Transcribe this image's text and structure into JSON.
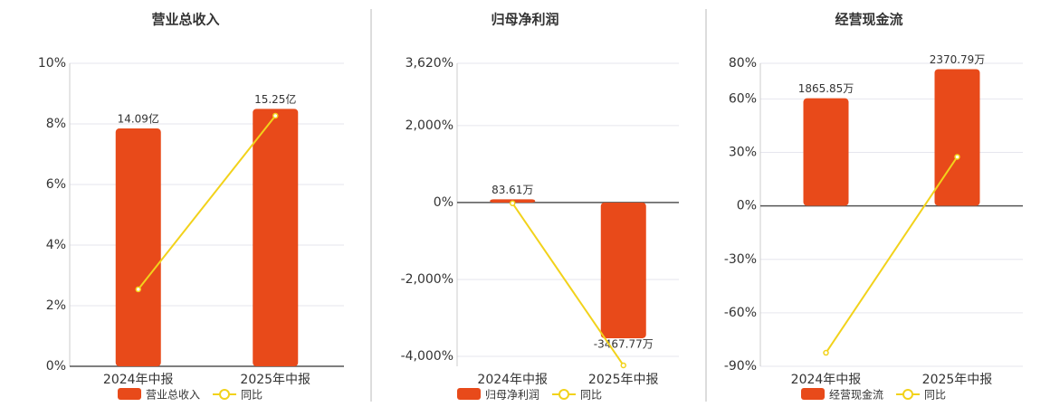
{
  "chart_data": [
    {
      "type": "bar-line",
      "title": "营业总收入",
      "categories": [
        "2024年中报",
        "2025年中报"
      ],
      "series": [
        {
          "name": "营业总收入",
          "color": "#e84a1a",
          "type": "bar",
          "axis": "y2",
          "values": [
            14.09,
            15.25
          ],
          "value_labels": [
            "14.09亿",
            "15.25亿"
          ]
        },
        {
          "name": "同比",
          "color": "#f2d21b",
          "type": "line",
          "axis": "y",
          "values": [
            2.54,
            8.27
          ]
        }
      ],
      "ylim": [
        0,
        10
      ],
      "yticks": [
        {
          "value": 0,
          "label": "0%"
        },
        {
          "value": 2,
          "label": "2%"
        },
        {
          "value": 4,
          "label": "4%"
        },
        {
          "value": 6,
          "label": "6%"
        },
        {
          "value": 8,
          "label": "8%"
        },
        {
          "value": 10,
          "label": "10%"
        }
      ],
      "y2lim": [
        0,
        17.95
      ],
      "grid": true
    },
    {
      "type": "bar-line",
      "title": "归母净利润",
      "categories": [
        "2024年中报",
        "2025年中报"
      ],
      "series": [
        {
          "name": "归母净利润",
          "color": "#e84a1a",
          "type": "bar",
          "axis": "y2",
          "values": [
            83.61,
            -3467.77
          ],
          "value_labels": [
            "83.61万",
            "-3467.77万"
          ]
        },
        {
          "name": "同比",
          "color": "#f2d21b",
          "type": "line",
          "axis": "y",
          "values": [
            -20,
            -4235
          ]
        }
      ],
      "ylim": [
        -4259,
        3620
      ],
      "yticks": [
        {
          "value": -4000,
          "label": "-4,000%"
        },
        {
          "value": -2000,
          "label": "-2,000%"
        },
        {
          "value": 0,
          "label": "0%"
        },
        {
          "value": 2000,
          "label": "2,000%"
        },
        {
          "value": 3620,
          "label": "3,620%"
        }
      ],
      "y2lim": [
        -4185,
        3560
      ],
      "grid": true
    },
    {
      "type": "bar-line",
      "title": "经营现金流",
      "categories": [
        "2024年中报",
        "2025年中报"
      ],
      "series": [
        {
          "name": "经营现金流",
          "color": "#e84a1a",
          "type": "bar",
          "axis": "y2",
          "values": [
            1865.85,
            2370.79
          ],
          "value_labels": [
            "1865.85万",
            "2370.79万"
          ]
        },
        {
          "name": "同比",
          "color": "#f2d21b",
          "type": "line",
          "axis": "y",
          "values": [
            -82.4,
            27.5
          ]
        }
      ],
      "ylim": [
        -90,
        80
      ],
      "yticks": [
        {
          "value": -90,
          "label": "-90%"
        },
        {
          "value": -60,
          "label": "-60%"
        },
        {
          "value": -30,
          "label": "-30%"
        },
        {
          "value": 0,
          "label": "0%"
        },
        {
          "value": 30,
          "label": "30%"
        },
        {
          "value": 60,
          "label": "60%"
        },
        {
          "value": 80,
          "label": "80%"
        }
      ],
      "y2lim": [
        -2788,
        2473
      ],
      "grid": true
    }
  ]
}
